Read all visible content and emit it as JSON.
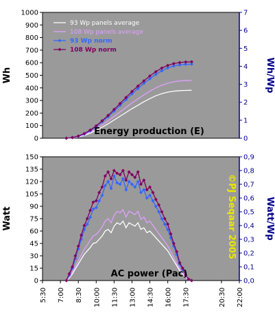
{
  "chart_data": [
    {
      "type": "line",
      "title": "Energy production (E)",
      "ylabel": "Wh",
      "y2label": "Wh/Wp",
      "ylim": [
        0,
        1000
      ],
      "y2lim": [
        0,
        7
      ],
      "yticks": [
        0,
        100,
        200,
        300,
        400,
        500,
        600,
        700,
        800,
        900,
        1000
      ],
      "y2ticks": [
        0,
        1,
        2,
        3,
        4,
        5,
        6,
        7
      ],
      "legend_position": "top-left",
      "x": [
        7.5,
        8.0,
        8.5,
        9.0,
        9.5,
        10.0,
        10.5,
        11.0,
        11.5,
        12.0,
        12.5,
        13.0,
        13.5,
        14.0,
        14.5,
        15.0,
        15.5,
        16.0,
        16.5,
        17.0,
        17.5,
        18.0
      ],
      "series": [
        {
          "name": "93 Wp panels average",
          "axis": "left",
          "color": "#ffffff",
          "values": [
            0,
            3,
            10,
            22,
            40,
            62,
            88,
            115,
            145,
            175,
            205,
            235,
            262,
            290,
            315,
            337,
            354,
            366,
            374,
            378,
            380,
            381
          ]
        },
        {
          "name": "108 Wp panels average",
          "axis": "left",
          "color": "#e0a0ff",
          "values": [
            0,
            4,
            12,
            27,
            48,
            74,
            105,
            138,
            173,
            209,
            245,
            281,
            313,
            345,
            374,
            400,
            421,
            437,
            448,
            455,
            458,
            459
          ]
        },
        {
          "name": "93  Wp norm",
          "axis": "right",
          "color": "#3366ff",
          "values": [
            0,
            0.04,
            0.11,
            0.23,
            0.41,
            0.65,
            0.92,
            1.2,
            1.51,
            1.83,
            2.15,
            2.47,
            2.76,
            3.05,
            3.31,
            3.55,
            3.75,
            3.91,
            4.02,
            4.08,
            4.11,
            4.12
          ]
        },
        {
          "name": "108  Wp norm",
          "axis": "right",
          "color": "#800060",
          "values": [
            0,
            0.04,
            0.12,
            0.26,
            0.45,
            0.69,
            0.97,
            1.27,
            1.6,
            1.93,
            2.27,
            2.6,
            2.9,
            3.19,
            3.46,
            3.7,
            3.9,
            4.05,
            4.15,
            4.21,
            4.24,
            4.25
          ]
        }
      ]
    },
    {
      "type": "line",
      "title": "AC power (Pac)",
      "ylabel": "Watt",
      "y2label": "Watt/Wp",
      "ylim": [
        0,
        150
      ],
      "y2lim": [
        0,
        0.9
      ],
      "yticks": [
        0,
        15,
        30,
        45,
        60,
        75,
        90,
        105,
        120,
        135,
        150
      ],
      "y2ticks": [
        "0,0",
        "0,1",
        "0,2",
        "0,3",
        "0,4",
        "0,5",
        "0,6",
        "0,7",
        "0,8",
        "0,9"
      ],
      "xticks": [
        "5:30",
        "7:00",
        "8:30",
        "10:00",
        "11:30",
        "13:00",
        "14:30",
        "16:00",
        "17:30",
        "20:30",
        "22:00"
      ],
      "xlim_hours": [
        5.5,
        22.0
      ],
      "annotation": "©PJ Seqaar 2005",
      "x": [
        7.5,
        7.75,
        8.0,
        8.25,
        8.5,
        8.75,
        9.0,
        9.25,
        9.5,
        9.75,
        10.0,
        10.25,
        10.5,
        10.75,
        11.0,
        11.25,
        11.5,
        11.75,
        12.0,
        12.25,
        12.5,
        12.75,
        13.0,
        13.25,
        13.5,
        13.75,
        14.0,
        14.25,
        14.5,
        14.75,
        15.0,
        15.25,
        15.5,
        15.75,
        16.0,
        16.25,
        16.5,
        16.75,
        17.0,
        17.25,
        17.5,
        17.75,
        18.0
      ],
      "series": [
        {
          "name": "93 Wp panels average",
          "axis": "left",
          "color": "#ffffff",
          "values": [
            0,
            3,
            8,
            14,
            20,
            26,
            32,
            36,
            40,
            45,
            46,
            50,
            54,
            60,
            62,
            58,
            66,
            70,
            68,
            72,
            64,
            70,
            68,
            66,
            70,
            62,
            64,
            58,
            60,
            56,
            52,
            48,
            44,
            40,
            36,
            30,
            24,
            18,
            12,
            8,
            4,
            1,
            0
          ]
        },
        {
          "name": "108 Wp panels average",
          "axis": "left",
          "color": "#e0a0ff",
          "values": [
            0,
            4,
            10,
            17,
            24,
            31,
            38,
            43,
            49,
            54,
            56,
            60,
            65,
            72,
            75,
            70,
            79,
            84,
            82,
            86,
            77,
            84,
            82,
            80,
            84,
            74,
            77,
            70,
            72,
            67,
            62,
            57,
            52,
            47,
            42,
            35,
            28,
            21,
            14,
            9,
            5,
            1,
            0
          ]
        },
        {
          "name": "93  Wp norm",
          "axis": "right",
          "color": "#3366ff",
          "values": [
            0,
            0.04,
            0.09,
            0.16,
            0.23,
            0.3,
            0.37,
            0.41,
            0.46,
            0.52,
            0.53,
            0.58,
            0.62,
            0.69,
            0.72,
            0.67,
            0.76,
            0.71,
            0.7,
            0.74,
            0.66,
            0.72,
            0.7,
            0.68,
            0.72,
            0.64,
            0.66,
            0.6,
            0.62,
            0.58,
            0.54,
            0.5,
            0.45,
            0.41,
            0.37,
            0.31,
            0.25,
            0.19,
            0.12,
            0.08,
            0.04,
            0.01,
            0.0
          ]
        },
        {
          "name": "108  Wp norm",
          "axis": "right",
          "color": "#800060",
          "values": [
            0,
            0.05,
            0.1,
            0.18,
            0.25,
            0.33,
            0.4,
            0.45,
            0.51,
            0.57,
            0.58,
            0.64,
            0.68,
            0.76,
            0.79,
            0.74,
            0.8,
            0.78,
            0.77,
            0.8,
            0.73,
            0.79,
            0.77,
            0.75,
            0.79,
            0.7,
            0.73,
            0.66,
            0.68,
            0.64,
            0.59,
            0.55,
            0.5,
            0.45,
            0.41,
            0.34,
            0.27,
            0.21,
            0.13,
            0.09,
            0.04,
            0.01,
            0.0
          ]
        }
      ]
    }
  ]
}
